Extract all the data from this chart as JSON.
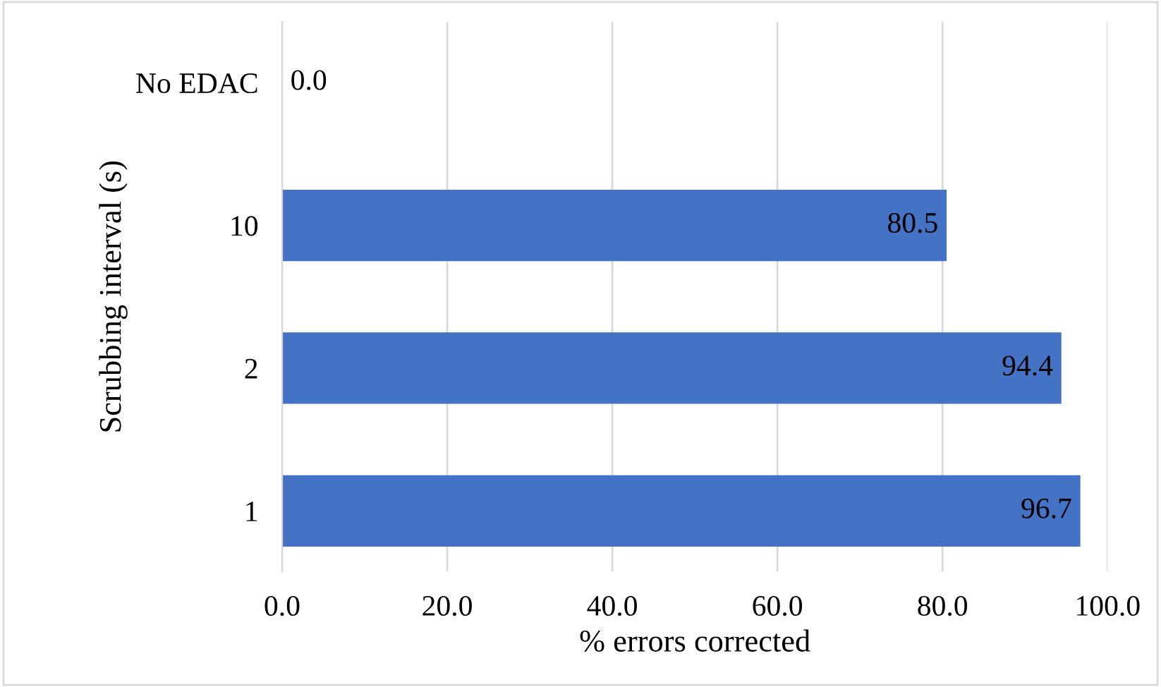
{
  "chart_data": {
    "type": "bar",
    "orientation": "horizontal",
    "ylabel": "Scrubbing interval (s)",
    "xlabel": "% errors corrected",
    "categories": [
      "No EDAC",
      "10",
      "2",
      "1"
    ],
    "values": [
      0.0,
      80.5,
      94.4,
      96.7
    ],
    "value_labels": [
      "0.0",
      "80.5",
      "94.4",
      "96.7"
    ],
    "color": "#4472c4",
    "xlim": [
      0,
      100
    ],
    "xticks": [
      {
        "value": 0,
        "label": "0.0"
      },
      {
        "value": 20,
        "label": "20.0"
      },
      {
        "value": 40,
        "label": "40.0"
      },
      {
        "value": 60,
        "label": "60.0"
      },
      {
        "value": 80,
        "label": "80.0"
      },
      {
        "value": 100,
        "label": "100.0"
      }
    ],
    "grid": "x"
  }
}
